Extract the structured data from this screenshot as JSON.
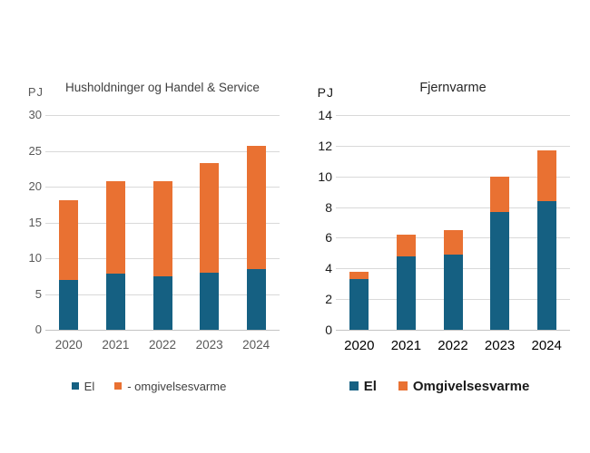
{
  "page": {
    "background": "#FFFFFF"
  },
  "style": {
    "el_color": "#156082",
    "omgivelsesvarme_color": "#E97132",
    "gridline_color": "#D9D9D9",
    "axisline_color": "#C3C3C3"
  },
  "chart_data": [
    {
      "type": "bar",
      "stacked": true,
      "title": "Husholdninger og Handel & Service",
      "unit_label": "PJ",
      "categories": [
        "2020",
        "2021",
        "2022",
        "2023",
        "2024"
      ],
      "series": [
        {
          "name": "El",
          "color": "#156082",
          "values": [
            7.0,
            7.8,
            7.5,
            8.0,
            8.5
          ]
        },
        {
          "name": "- omgivelsesvarme",
          "color": "#E97132",
          "values": [
            11.1,
            12.9,
            13.2,
            15.3,
            17.2
          ]
        }
      ],
      "totals": [
        18.1,
        20.7,
        20.7,
        23.3,
        25.7
      ],
      "ylim": [
        0,
        30
      ],
      "ytick_step": 5,
      "yticks": [
        0,
        5,
        10,
        15,
        20,
        25,
        30
      ],
      "grid": true,
      "legend_position": "bottom"
    },
    {
      "type": "bar",
      "stacked": true,
      "title": "Fjernvarme",
      "unit_label": "PJ",
      "categories": [
        "2020",
        "2021",
        "2022",
        "2023",
        "2024"
      ],
      "series": [
        {
          "name": "El",
          "color": "#156082",
          "values": [
            3.3,
            4.8,
            4.9,
            7.7,
            8.4
          ]
        },
        {
          "name": "Omgivelsesvarme",
          "color": "#E97132",
          "values": [
            0.5,
            1.4,
            1.6,
            2.3,
            3.3
          ]
        }
      ],
      "totals": [
        3.8,
        6.2,
        6.5,
        10.0,
        11.7
      ],
      "ylim": [
        0,
        14
      ],
      "ytick_step": 2,
      "yticks": [
        0,
        2,
        4,
        6,
        8,
        10,
        12,
        14
      ],
      "grid": true,
      "legend_position": "bottom"
    }
  ]
}
